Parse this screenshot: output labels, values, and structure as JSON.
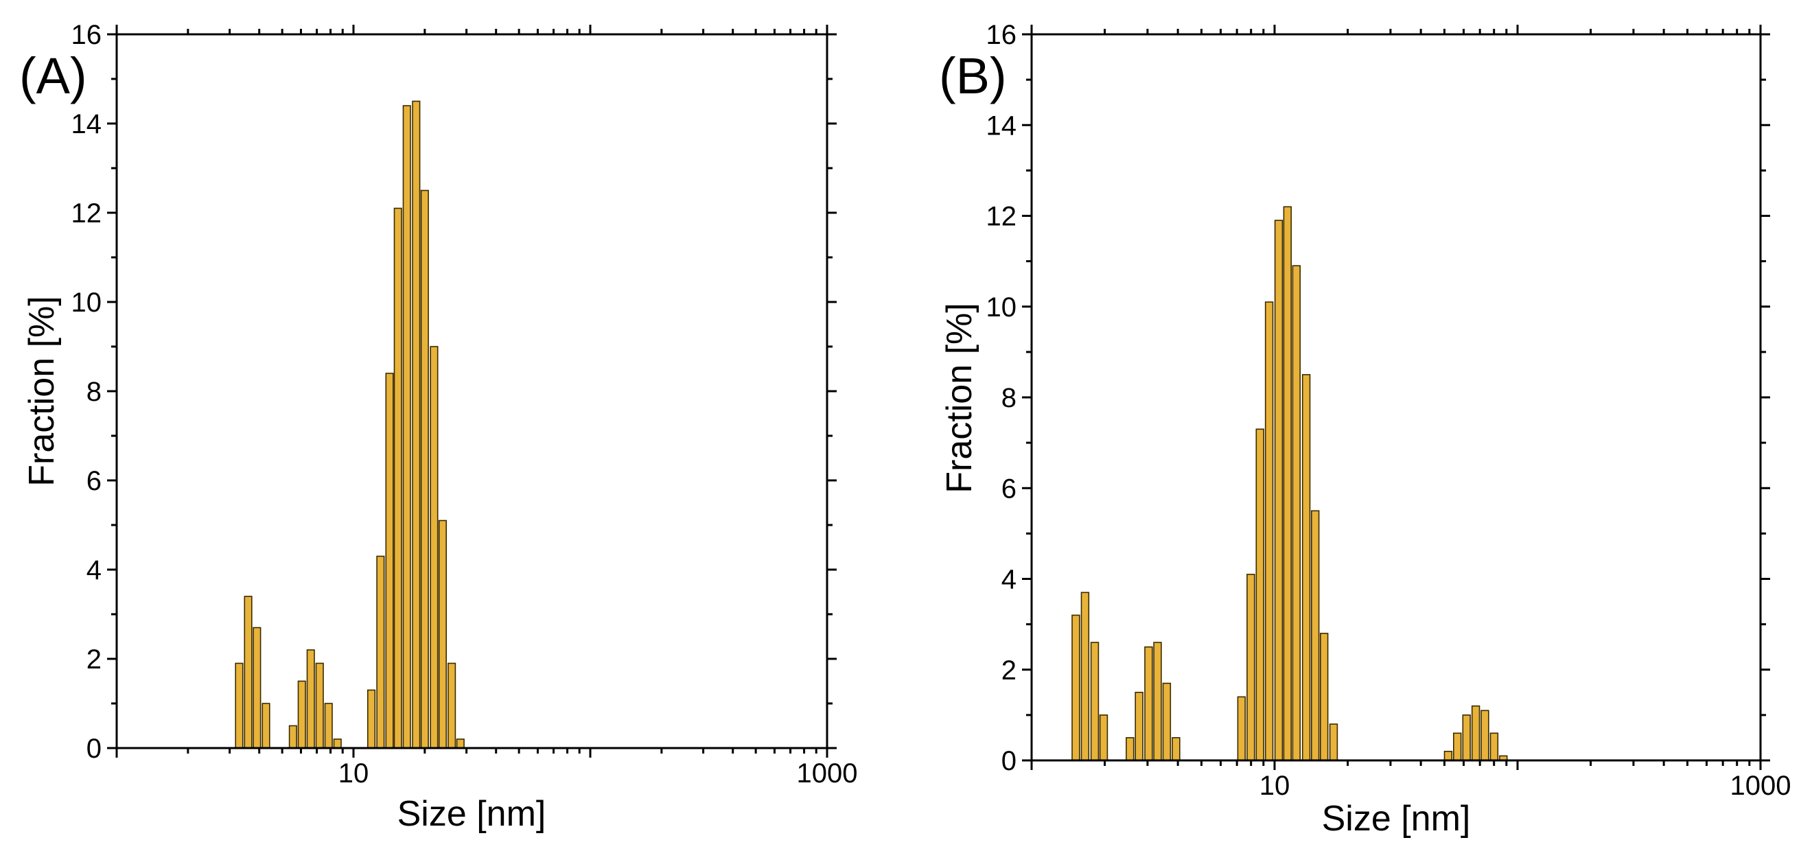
{
  "chart_data": [
    {
      "type": "bar",
      "panel_label": "(A)",
      "xlabel": "Size [nm]",
      "ylabel": "Fraction [%]",
      "xscale": "log",
      "xlim": [
        1,
        1000
      ],
      "ylim": [
        0,
        16
      ],
      "y_ticks": [
        0,
        2,
        4,
        6,
        8,
        10,
        12,
        14,
        16
      ],
      "x_tick_labels": [
        {
          "value": 10,
          "label": "10"
        },
        {
          "value": 1000,
          "label": "1000"
        }
      ],
      "x": [
        3.29,
        3.59,
        3.91,
        4.27,
        5.55,
        6.05,
        6.6,
        7.2,
        7.85,
        8.56,
        11.9,
        13.0,
        14.2,
        15.4,
        16.8,
        18.4,
        20.0,
        21.9,
        23.8,
        26.0,
        28.3,
        30.9,
        33.7,
        36.8
      ],
      "values": [
        1.9,
        3.4,
        2.7,
        1.0,
        0.5,
        1.5,
        2.2,
        1.9,
        1.0,
        0.2,
        1.3,
        4.3,
        8.4,
        12.1,
        14.4,
        14.5,
        12.5,
        9.0,
        5.1,
        1.9,
        0.2,
        0,
        0,
        0
      ]
    },
    {
      "type": "bar",
      "panel_label": "(B)",
      "xlabel": "Size [nm]",
      "ylabel": "Fraction [%]",
      "xscale": "log",
      "xlim": [
        1,
        1000
      ],
      "ylim": [
        0,
        16
      ],
      "y_ticks": [
        0,
        2,
        4,
        6,
        8,
        10,
        12,
        14,
        16
      ],
      "x_tick_labels": [
        {
          "value": 10,
          "label": "10"
        },
        {
          "value": 1000,
          "label": "1000"
        }
      ],
      "x": [
        1.52,
        1.66,
        1.82,
        1.98,
        2.54,
        2.77,
        3.03,
        3.3,
        3.6,
        3.93,
        7.31,
        7.98,
        8.71,
        9.5,
        10.4,
        11.3,
        12.3,
        13.5,
        14.7,
        16.0,
        17.5,
        19.1,
        51.8,
        56.5,
        61.7,
        67.3,
        73.4,
        80.1,
        87.4
      ],
      "values": [
        3.2,
        3.7,
        2.6,
        1.0,
        0.5,
        1.5,
        2.5,
        2.6,
        1.7,
        0.5,
        1.4,
        4.1,
        7.3,
        10.1,
        11.9,
        12.2,
        10.9,
        8.5,
        5.5,
        2.8,
        0.8,
        0,
        0.2,
        0.6,
        1.0,
        1.2,
        1.1,
        0.6,
        0.1
      ]
    }
  ]
}
